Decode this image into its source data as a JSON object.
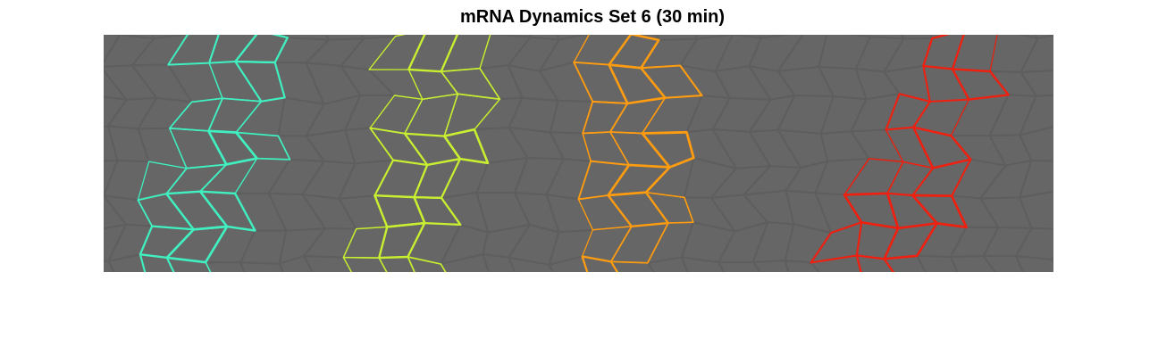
{
  "figure": {
    "title": "mRNA Dynamics Set 6 (30 min)"
  },
  "image": {
    "background_color": "#666666",
    "cell_edge_color": "#5e5e5e",
    "stripes": [
      {
        "color": "#40f0c0"
      },
      {
        "color": "#c8f030"
      },
      {
        "color": "#ff9c10"
      },
      {
        "color": "#f02010"
      }
    ]
  }
}
